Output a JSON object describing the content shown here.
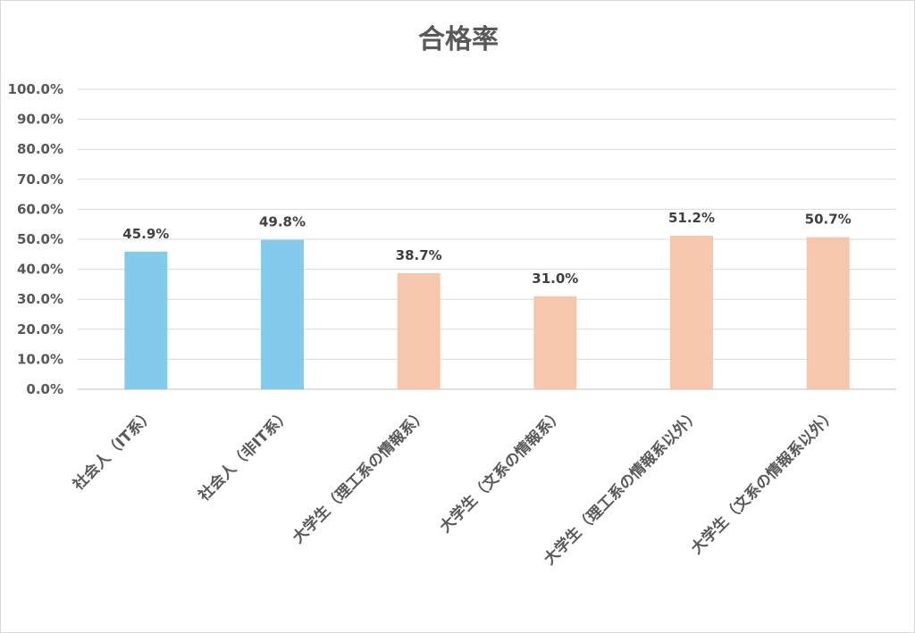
{
  "chart_data": {
    "type": "bar",
    "title": "合格率",
    "xlabel": "",
    "ylabel": "",
    "ylim": [
      0,
      100
    ],
    "yticks": [
      "0.0%",
      "10.0%",
      "20.0%",
      "30.0%",
      "40.0%",
      "50.0%",
      "60.0%",
      "70.0%",
      "80.0%",
      "90.0%",
      "100.0%"
    ],
    "grid": true,
    "legend": "none",
    "categories": [
      "社会人（IT系）",
      "社会人（非IT系）",
      "大学生（理工系の情報系）",
      "大学生（文系の情報系）",
      "大学生（理工系の情報系以外）",
      "大学生（文系の情報系以外）"
    ],
    "values": [
      45.9,
      49.8,
      38.7,
      31.0,
      51.2,
      50.7
    ],
    "data_labels": [
      "45.9%",
      "49.8%",
      "38.7%",
      "31.0%",
      "51.2%",
      "50.7%"
    ],
    "colors": [
      "#82cbec",
      "#82cbec",
      "#f6c6ad",
      "#f6c6ad",
      "#f6c6ad",
      "#f6c6ad"
    ]
  }
}
